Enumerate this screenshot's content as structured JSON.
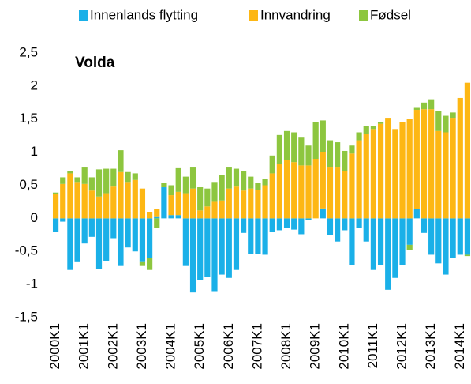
{
  "chart_data": {
    "type": "stacked_bar",
    "title": "Volda",
    "categories": [
      "2000K1",
      null,
      null,
      null,
      "2001K1",
      null,
      null,
      null,
      "2002K1",
      null,
      null,
      null,
      "2003K1",
      null,
      null,
      null,
      "2004K1",
      null,
      null,
      null,
      "2005K1",
      null,
      null,
      null,
      "2006K1",
      null,
      null,
      null,
      "2007K1",
      null,
      null,
      null,
      "2008K1",
      null,
      null,
      null,
      "2009K1",
      null,
      null,
      null,
      "2010K1",
      null,
      null,
      null,
      "2011K1",
      null,
      null,
      null,
      "2012K1",
      null,
      null,
      null,
      "2013K1",
      null,
      null,
      null,
      "2014K1",
      null
    ],
    "series": [
      {
        "name": "Innenlands flytting",
        "color": "#1ab0e8",
        "values": [
          -0.2,
          -0.05,
          -0.78,
          -0.65,
          -0.38,
          -0.28,
          -0.77,
          -0.64,
          -0.3,
          -0.72,
          -0.44,
          -0.5,
          -0.65,
          -0.6,
          0.02,
          0.47,
          0.05,
          0.05,
          -0.72,
          -1.12,
          -0.93,
          -0.88,
          -1.1,
          -0.85,
          -0.9,
          -0.78,
          -0.22,
          -0.54,
          -0.54,
          -0.55,
          -0.2,
          -0.18,
          -0.14,
          -0.17,
          -0.24,
          -0.02,
          0.0,
          0.15,
          -0.25,
          -0.35,
          -0.18,
          -0.7,
          -0.15,
          -0.35,
          -0.78,
          -0.7,
          -1.08,
          -0.9,
          -0.7,
          -0.4,
          0.14,
          -0.22,
          -0.55,
          -0.68,
          -0.85,
          -0.6,
          -0.55,
          -0.55
        ]
      },
      {
        "name": "Innvandring",
        "color": "#fdb714",
        "values": [
          0.37,
          0.52,
          0.68,
          0.55,
          0.52,
          0.42,
          0.33,
          0.38,
          0.48,
          0.7,
          0.55,
          0.58,
          0.45,
          0.1,
          0.12,
          0.0,
          0.3,
          0.35,
          0.38,
          0.45,
          0.12,
          0.18,
          0.25,
          0.27,
          0.45,
          0.48,
          0.42,
          0.45,
          0.43,
          0.5,
          0.68,
          0.82,
          0.88,
          0.85,
          0.8,
          0.8,
          0.9,
          0.85,
          0.78,
          0.78,
          0.72,
          0.98,
          1.18,
          1.28,
          1.35,
          1.43,
          1.52,
          1.35,
          1.45,
          1.5,
          1.5,
          1.65,
          1.65,
          1.32,
          1.3,
          1.52,
          1.82,
          2.05
        ]
      },
      {
        "name": "Fødsel",
        "color": "#8dc63f",
        "values": [
          0.02,
          0.1,
          0.04,
          0.07,
          0.26,
          0.2,
          0.41,
          0.37,
          0.27,
          0.33,
          0.15,
          0.1,
          -0.07,
          -0.18,
          -0.15,
          0.07,
          0.15,
          0.37,
          0.25,
          0.33,
          0.35,
          0.27,
          0.3,
          0.38,
          0.33,
          0.27,
          0.3,
          0.18,
          0.1,
          0.1,
          0.27,
          0.44,
          0.44,
          0.45,
          0.42,
          0.3,
          0.55,
          0.48,
          0.4,
          0.37,
          0.3,
          0.12,
          0.12,
          0.12,
          0.05,
          0.02,
          0.0,
          0.0,
          0.0,
          -0.08,
          0.03,
          0.1,
          0.15,
          0.3,
          0.25,
          0.08,
          0.0,
          -0.02
        ]
      }
    ],
    "ylim": [
      -1.5,
      2.5
    ],
    "yticks": [
      {
        "value": -1.5,
        "label": "-1,5"
      },
      -1,
      {
        "value": -0.5,
        "label": "-0,5"
      },
      0,
      {
        "value": 0.5,
        "label": "0,5"
      },
      1,
      {
        "value": 1.5,
        "label": "1,5"
      },
      2,
      {
        "value": 2.5,
        "label": "2,5"
      }
    ],
    "legend": "top"
  }
}
